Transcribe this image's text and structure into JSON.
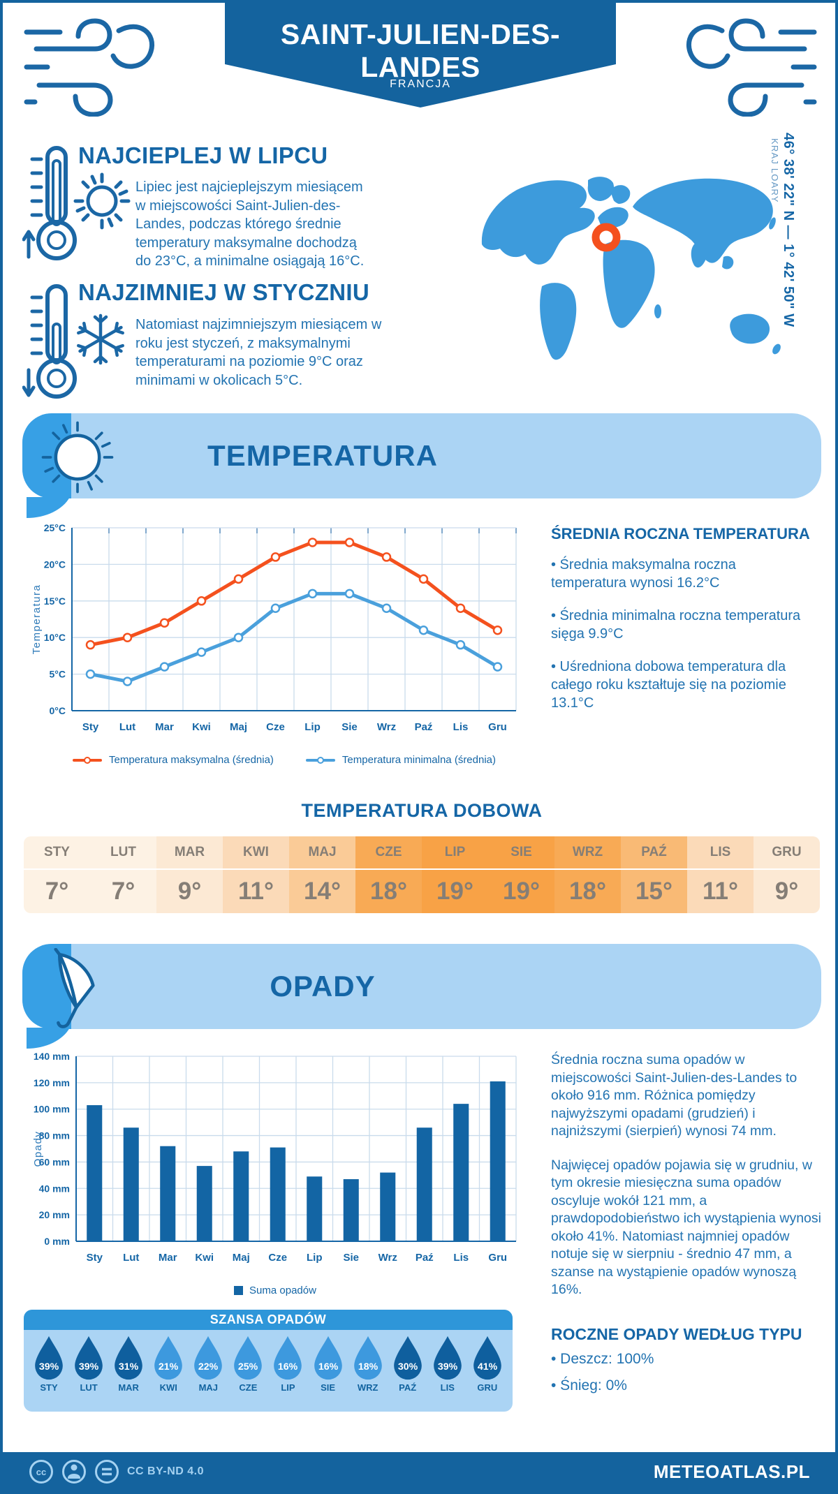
{
  "header": {
    "title": "SAINT-JULIEN-DES-LANDES",
    "subtitle": "FRANCJA"
  },
  "warmest": {
    "heading": "NAJCIEPLEJ W LIPCU",
    "text": "Lipiec jest najcieplejszym miesiącem w miejscowości Saint-Julien-des-Landes, podczas którego średnie temperatury maksymalne dochodzą do 23°C, a minimalne osiągają 16°C."
  },
  "coldest": {
    "heading": "NAJZIMNIEJ W STYCZNIU",
    "text": "Natomiast najzimniejszym miesiącem w roku jest styczeń, z maksymalnymi temperaturami na poziomie 9°C oraz minimami w okolicach 5°C."
  },
  "location": {
    "coordinates": "46° 38' 22\" N — 1° 42' 50\" W",
    "region": "KRAJ LOARY"
  },
  "sections": {
    "temperature": "TEMPERATURA",
    "precipitation": "OPADY"
  },
  "annual_temp": {
    "heading": "ŚREDNIA ROCZNA TEMPERATURA",
    "bullets": [
      "• Średnia maksymalna roczna temperatura wynosi 16.2°C",
      "• Średnia minimalna roczna temperatura sięga 9.9°C",
      "• Uśredniona dobowa temperatura dla całego roku kształtuje się na poziomie 13.1°C"
    ]
  },
  "daily_temp": {
    "heading": "TEMPERATURA DOBOWA",
    "months": [
      "STY",
      "LUT",
      "MAR",
      "KWI",
      "MAJ",
      "CZE",
      "LIP",
      "SIE",
      "WRZ",
      "PAŹ",
      "LIS",
      "GRU"
    ],
    "values": [
      "7°",
      "7°",
      "9°",
      "11°",
      "14°",
      "18°",
      "19°",
      "19°",
      "18°",
      "15°",
      "11°",
      "9°"
    ],
    "cell_colors": [
      "#fdf2e4",
      "#fdf2e4",
      "#fce9d4",
      "#fbdab8",
      "#facb97",
      "#f8aa55",
      "#f8a246",
      "#f8a246",
      "#f8aa55",
      "#f9ba75",
      "#fbdab8",
      "#fce9d4"
    ]
  },
  "precip_text": {
    "para1": "Średnia roczna suma opadów w miejscowości Saint-Julien-des-Landes to około 916 mm. Różnica pomiędzy najwyższymi opadami (grudzień) i najniższymi (sierpień) wynosi 74 mm.",
    "para2": "Najwięcej opadów pojawia się w grudniu, w tym okresie miesięczna suma opadów oscyluje wokół 121 mm, a prawdopodobieństwo ich wystąpienia wynosi około 41%. Natomiast najmniej opadów notuje się w sierpniu - średnio 47 mm, a szanse na wystąpienie opadów wynoszą 16%."
  },
  "precip_type": {
    "heading": "ROCZNE OPADY WEDŁUG TYPU",
    "bullets": [
      "• Deszcz: 100%",
      "• Śnieg: 0%"
    ]
  },
  "rain_chance": {
    "heading": "SZANSA OPADÓW",
    "months": [
      "STY",
      "LUT",
      "MAR",
      "KWI",
      "MAJ",
      "CZE",
      "LIP",
      "SIE",
      "WRZ",
      "PAŹ",
      "LIS",
      "GRU"
    ],
    "values": [
      "39%",
      "39%",
      "31%",
      "21%",
      "22%",
      "25%",
      "16%",
      "16%",
      "18%",
      "30%",
      "39%",
      "41%"
    ],
    "dark": [
      true,
      true,
      true,
      false,
      false,
      false,
      false,
      false,
      false,
      true,
      true,
      true
    ],
    "drop_colors": {
      "dark": "#0f5f9e",
      "light": "#3d99de"
    }
  },
  "footer": {
    "license": "CC BY-ND 4.0",
    "site": "METEOATLAS.PL"
  },
  "colors": {
    "primary": "#14639e",
    "heading": "#1566a6",
    "body_text": "#2273b1",
    "banner_bg": "#abd4f4",
    "banner_tab": "#37a0e5",
    "map_land": "#3d9bdc",
    "marker": "#f4501e",
    "grid": "#c9dbec",
    "chance_header_bg": "#2e96d9",
    "table_text": "#857e76"
  },
  "icons": [
    "wind-icon",
    "thermometer-up-icon",
    "sun-icon",
    "thermometer-down-icon",
    "snowflake-icon",
    "world-map",
    "location-marker-icon",
    "umbrella-icon",
    "raindrop-icon",
    "cc-icon",
    "cc-person-icon",
    "cc-nd-icon"
  ],
  "chart_data": [
    {
      "type": "line",
      "categories": [
        "Sty",
        "Lut",
        "Mar",
        "Kwi",
        "Maj",
        "Cze",
        "Lip",
        "Sie",
        "Wrz",
        "Paź",
        "Lis",
        "Gru"
      ],
      "series": [
        {
          "name": "Temperatura maksymalna (średnia)",
          "color": "#f4511e",
          "values": [
            9,
            10,
            12,
            15,
            18,
            21,
            23,
            23,
            21,
            18,
            14,
            11
          ]
        },
        {
          "name": "Temperatura minimalna (średnia)",
          "color": "#4aa0dc",
          "values": [
            5,
            4,
            6,
            8,
            10,
            14,
            16,
            16,
            14,
            11,
            9,
            6
          ]
        }
      ],
      "ylabel": "Temperatura",
      "xlabel": "",
      "ylim": [
        0,
        25
      ],
      "ytick_step": 5,
      "ytick_suffix": "°C",
      "grid": true,
      "legend_position": "bottom"
    },
    {
      "type": "bar",
      "categories": [
        "Sty",
        "Lut",
        "Mar",
        "Kwi",
        "Maj",
        "Cze",
        "Lip",
        "Sie",
        "Wrz",
        "Paź",
        "Lis",
        "Gru"
      ],
      "series": [
        {
          "name": "Suma opadów",
          "color": "#1365a4",
          "values": [
            103,
            86,
            72,
            57,
            68,
            71,
            49,
            47,
            52,
            86,
            104,
            121
          ]
        }
      ],
      "ylabel": "Opady",
      "xlabel": "",
      "ylim": [
        0,
        140
      ],
      "ytick_step": 20,
      "ytick_suffix": " mm",
      "grid": true,
      "legend_position": "bottom"
    }
  ]
}
